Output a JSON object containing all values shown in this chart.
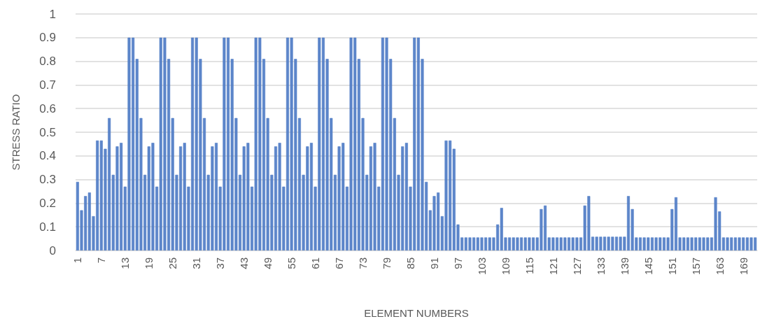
{
  "chart_data": {
    "type": "bar",
    "xlabel": "ELEMENT NUMBERS",
    "ylabel": "STRESS RATIO",
    "categories": [
      "1",
      null,
      null,
      null,
      null,
      null,
      "7",
      null,
      null,
      null,
      null,
      null,
      "13",
      null,
      null,
      null,
      null,
      null,
      "19",
      null,
      null,
      null,
      null,
      null,
      "25",
      null,
      null,
      null,
      null,
      null,
      "31",
      null,
      null,
      null,
      null,
      null,
      "37",
      null,
      null,
      null,
      null,
      null,
      "43",
      null,
      null,
      null,
      null,
      null,
      "49",
      null,
      null,
      null,
      null,
      null,
      "55",
      null,
      null,
      null,
      null,
      null,
      "61",
      null,
      null,
      null,
      null,
      null,
      "67",
      null,
      null,
      null,
      null,
      null,
      "73",
      null,
      null,
      null,
      null,
      null,
      "79",
      null,
      null,
      null,
      null,
      null,
      "85",
      null,
      null,
      null,
      null,
      null,
      "91",
      null,
      null,
      null,
      null,
      null,
      "97",
      null,
      null,
      null,
      null,
      null,
      "103",
      null,
      null,
      null,
      null,
      null,
      "109",
      null,
      null,
      null,
      null,
      null,
      "115",
      null,
      null,
      null,
      null,
      null,
      "121",
      null,
      null,
      null,
      null,
      null,
      "127",
      null,
      null,
      null,
      null,
      null,
      "133",
      null,
      null,
      null,
      null,
      null,
      "139",
      null,
      null,
      null,
      null,
      null,
      "145",
      null,
      null,
      null,
      null,
      null,
      "151",
      null,
      null,
      null,
      null,
      null,
      "157",
      null,
      null,
      null,
      null,
      null,
      "163",
      null,
      null,
      null,
      null,
      null,
      "169",
      null,
      null,
      null
    ],
    "values": [
      0.29,
      0.17,
      0.23,
      0.245,
      0.145,
      0.465,
      0.465,
      0.43,
      0.56,
      0.32,
      0.44,
      0.455,
      0.27,
      0.9,
      0.9,
      0.81,
      0.56,
      0.32,
      0.44,
      0.455,
      0.27,
      0.9,
      0.9,
      0.81,
      0.56,
      0.32,
      0.44,
      0.455,
      0.27,
      0.9,
      0.9,
      0.81,
      0.56,
      0.32,
      0.44,
      0.455,
      0.27,
      0.9,
      0.9,
      0.81,
      0.56,
      0.32,
      0.44,
      0.455,
      0.27,
      0.9,
      0.9,
      0.81,
      0.56,
      0.32,
      0.44,
      0.455,
      0.27,
      0.9,
      0.9,
      0.81,
      0.56,
      0.32,
      0.44,
      0.455,
      0.27,
      0.9,
      0.9,
      0.81,
      0.56,
      0.32,
      0.44,
      0.455,
      0.27,
      0.9,
      0.9,
      0.81,
      0.56,
      0.32,
      0.44,
      0.455,
      0.27,
      0.9,
      0.9,
      0.81,
      0.56,
      0.32,
      0.44,
      0.455,
      0.27,
      0.9,
      0.9,
      0.81,
      0.29,
      0.17,
      0.23,
      0.245,
      0.145,
      0.465,
      0.465,
      0.43,
      0.11,
      0.055,
      0.055,
      0.055,
      0.055,
      0.055,
      0.055,
      0.055,
      0.055,
      0.055,
      0.11,
      0.18,
      0.055,
      0.055,
      0.055,
      0.055,
      0.055,
      0.055,
      0.055,
      0.055,
      0.055,
      0.175,
      0.19,
      0.055,
      0.055,
      0.055,
      0.055,
      0.055,
      0.055,
      0.055,
      0.055,
      0.055,
      0.19,
      0.23,
      0.058,
      0.058,
      0.058,
      0.058,
      0.058,
      0.058,
      0.058,
      0.058,
      0.058,
      0.23,
      0.175,
      0.055,
      0.055,
      0.055,
      0.055,
      0.055,
      0.055,
      0.055,
      0.055,
      0.055,
      0.175,
      0.225,
      0.055,
      0.055,
      0.055,
      0.055,
      0.055,
      0.055,
      0.055,
      0.055,
      0.055,
      0.225,
      0.165,
      0.055,
      0.055,
      0.055,
      0.055,
      0.055,
      0.055,
      0.055,
      0.055,
      0.055
    ],
    "color": "#4f7cc6",
    "ylim": [
      0,
      1
    ],
    "yticks": [
      0,
      0.1,
      0.2,
      0.3,
      0.4,
      0.5,
      0.6,
      0.7,
      0.8,
      0.9,
      1
    ],
    "grid": "y"
  }
}
